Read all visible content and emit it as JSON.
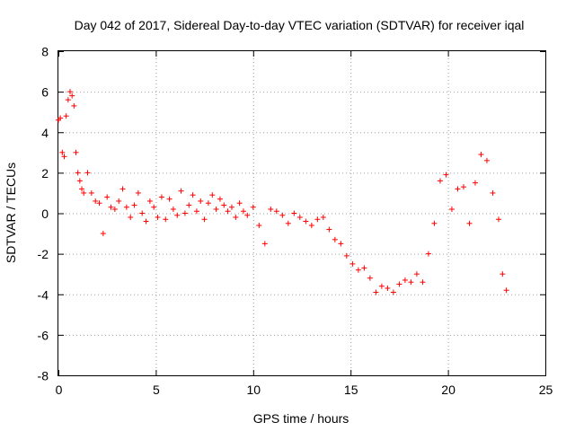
{
  "chart_data": {
    "type": "scatter",
    "title": "Day 042 of 2017, Sidereal Day-to-day VTEC variation (SDTVAR) for receiver iqal",
    "xlabel": "GPS time / hours",
    "ylabel": "SDTVAR / TECUs",
    "xlim": [
      0,
      25
    ],
    "ylim": [
      -8,
      8
    ],
    "x_ticks": [
      0,
      5,
      10,
      15,
      20,
      25
    ],
    "y_ticks": [
      -8,
      -6,
      -4,
      -2,
      0,
      2,
      4,
      6,
      8
    ],
    "x_tick_labels": [
      "0",
      "5",
      "10",
      "15",
      "20",
      "25"
    ],
    "y_tick_labels": [
      "-8",
      "-6",
      "-4",
      "-2",
      "0",
      "2",
      "4",
      "6",
      "8"
    ],
    "grid": true,
    "marker": "+",
    "color": "#ff0000",
    "series": [
      {
        "name": "SDTVAR",
        "x": [
          0.0,
          0.1,
          0.2,
          0.3,
          0.4,
          0.5,
          0.6,
          0.7,
          0.8,
          0.9,
          1.0,
          1.1,
          1.2,
          1.3,
          1.5,
          1.7,
          1.9,
          2.1,
          2.3,
          2.5,
          2.7,
          2.9,
          3.1,
          3.3,
          3.5,
          3.7,
          3.9,
          4.1,
          4.3,
          4.5,
          4.7,
          4.9,
          5.1,
          5.3,
          5.5,
          5.7,
          5.9,
          6.1,
          6.3,
          6.5,
          6.7,
          6.9,
          7.1,
          7.3,
          7.5,
          7.7,
          7.9,
          8.1,
          8.3,
          8.5,
          8.7,
          8.9,
          9.1,
          9.3,
          9.5,
          9.7,
          10.0,
          10.3,
          10.6,
          10.9,
          11.2,
          11.5,
          11.8,
          12.1,
          12.4,
          12.7,
          13.0,
          13.3,
          13.6,
          13.9,
          14.2,
          14.5,
          14.8,
          15.1,
          15.4,
          15.7,
          16.0,
          16.3,
          16.6,
          16.9,
          17.2,
          17.5,
          17.8,
          18.1,
          18.4,
          18.7,
          19.0,
          19.3,
          19.6,
          19.9,
          20.2,
          20.5,
          20.8,
          21.1,
          21.4,
          21.7,
          22.0,
          22.3,
          22.6,
          22.8,
          23.0
        ],
        "y": [
          4.6,
          4.7,
          3.0,
          2.8,
          4.8,
          5.6,
          6.0,
          5.8,
          5.3,
          3.0,
          2.0,
          1.6,
          1.2,
          1.0,
          2.0,
          1.0,
          0.6,
          0.5,
          -1.0,
          0.8,
          0.3,
          0.2,
          0.6,
          1.2,
          0.3,
          -0.2,
          0.4,
          1.0,
          0.0,
          -0.4,
          0.6,
          0.3,
          -0.2,
          0.8,
          -0.3,
          0.7,
          0.2,
          -0.1,
          1.1,
          0.0,
          0.4,
          0.9,
          0.1,
          0.6,
          -0.3,
          0.5,
          0.9,
          0.2,
          0.7,
          0.4,
          0.1,
          0.3,
          -0.2,
          0.5,
          0.1,
          -0.1,
          0.3,
          -0.6,
          -1.5,
          0.2,
          0.1,
          -0.1,
          -0.5,
          0.0,
          -0.2,
          -0.4,
          -0.6,
          -0.3,
          -0.2,
          -0.8,
          -1.3,
          -1.5,
          -2.1,
          -2.5,
          -2.8,
          -2.7,
          -3.2,
          -3.9,
          -3.6,
          -3.7,
          -3.9,
          -3.5,
          -3.3,
          -3.4,
          -3.0,
          -3.4,
          -2.0,
          -0.5,
          1.6,
          1.9,
          0.2,
          1.2,
          1.3,
          -0.5,
          1.5,
          2.9,
          2.6,
          1.0,
          -0.3,
          -3.0,
          -3.8
        ]
      }
    ]
  }
}
